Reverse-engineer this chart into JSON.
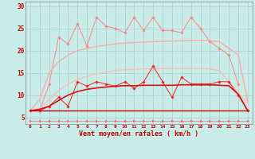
{
  "xlabel": "Vent moyen/en rafales ( km/h )",
  "xlim": [
    -0.5,
    23.5
  ],
  "ylim": [
    3.5,
    31
  ],
  "yticks": [
    5,
    10,
    15,
    20,
    25,
    30
  ],
  "xticks": [
    0,
    1,
    2,
    3,
    4,
    5,
    6,
    7,
    8,
    9,
    10,
    11,
    12,
    13,
    14,
    15,
    16,
    17,
    18,
    19,
    20,
    21,
    22,
    23
  ],
  "bg_color": "#c8ece8",
  "grid_color": "#aacccc",
  "series": [
    {
      "label": "spiky_light_pink",
      "color": "#ff8888",
      "lw": 0.7,
      "marker": "D",
      "markersize": 1.8,
      "y": [
        6.5,
        6.5,
        12.5,
        23.0,
        21.5,
        26.0,
        21.0,
        27.5,
        25.5,
        25.0,
        24.0,
        27.5,
        24.5,
        27.5,
        24.5,
        24.5,
        24.0,
        27.5,
        25.0,
        22.0,
        20.5,
        19.0,
        12.5,
        null
      ]
    },
    {
      "label": "smooth_upper_light",
      "color": "#ffaaaa",
      "lw": 1.0,
      "marker": null,
      "markersize": 0,
      "y": [
        6.5,
        9.0,
        15.0,
        17.5,
        19.0,
        20.0,
        20.5,
        20.9,
        21.2,
        21.5,
        21.7,
        21.8,
        21.9,
        22.0,
        22.1,
        22.1,
        22.2,
        22.3,
        22.3,
        22.2,
        22.0,
        20.5,
        19.0,
        8.5
      ]
    },
    {
      "label": "smooth_lower_light",
      "color": "#ffbbbb",
      "lw": 1.0,
      "marker": null,
      "markersize": 0,
      "y": [
        6.5,
        7.0,
        9.0,
        11.0,
        12.5,
        13.5,
        14.2,
        14.8,
        15.2,
        15.5,
        15.7,
        15.8,
        15.9,
        15.9,
        16.0,
        16.0,
        16.0,
        16.0,
        16.0,
        15.9,
        15.5,
        13.0,
        10.5,
        8.0
      ]
    },
    {
      "label": "medium_red_spiky",
      "color": "#ff2222",
      "lw": 0.7,
      "marker": "D",
      "markersize": 1.8,
      "y": [
        6.5,
        6.5,
        7.5,
        9.5,
        7.5,
        13.0,
        12.0,
        13.0,
        12.5,
        12.0,
        13.0,
        11.5,
        13.0,
        16.5,
        13.0,
        9.5,
        14.0,
        12.5,
        12.5,
        12.5,
        13.0,
        13.0,
        10.0,
        6.5
      ]
    },
    {
      "label": "smooth_mid_red",
      "color": "#dd1111",
      "lw": 1.2,
      "marker": null,
      "markersize": 0,
      "y": [
        6.5,
        6.8,
        7.5,
        8.8,
        10.0,
        10.8,
        11.3,
        11.6,
        11.8,
        12.0,
        12.1,
        12.1,
        12.2,
        12.2,
        12.2,
        12.2,
        12.3,
        12.3,
        12.3,
        12.3,
        12.2,
        12.1,
        10.2,
        6.5
      ]
    },
    {
      "label": "flat_dark_red",
      "color": "#bb0000",
      "lw": 1.0,
      "marker": null,
      "markersize": 0,
      "y": [
        6.5,
        6.5,
        6.5,
        6.5,
        6.5,
        6.5,
        6.5,
        6.5,
        6.5,
        6.5,
        6.5,
        6.5,
        6.5,
        6.5,
        6.5,
        6.5,
        6.5,
        6.5,
        6.5,
        6.5,
        6.5,
        6.5,
        6.5,
        6.5
      ]
    },
    {
      "label": "arrow_row",
      "color": "#ff6666",
      "lw": 0.5,
      "marker": ">",
      "markersize": 2.0,
      "y": [
        4.2,
        4.2,
        4.2,
        4.2,
        4.2,
        4.2,
        4.2,
        4.2,
        4.2,
        4.2,
        4.2,
        4.2,
        4.2,
        4.2,
        4.2,
        4.2,
        4.2,
        4.2,
        4.2,
        4.2,
        4.2,
        4.2,
        4.2,
        4.2
      ]
    }
  ]
}
